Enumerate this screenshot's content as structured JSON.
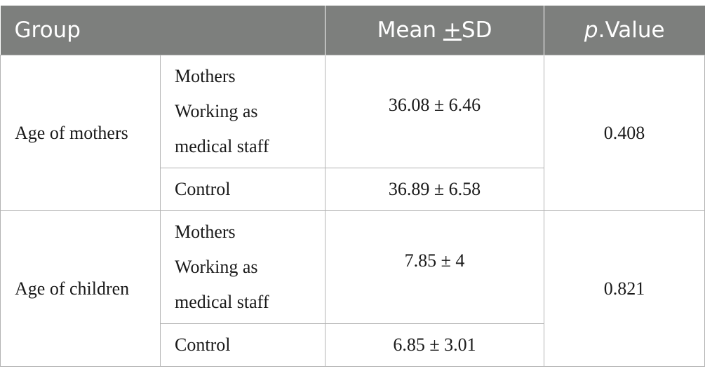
{
  "table": {
    "headers": {
      "group": "Group",
      "mean_prefix": "Mean ",
      "mean_pm": "+",
      "mean_suffix": "SD",
      "p_italic": "p",
      "p_rest": ".Value"
    },
    "rows": [
      {
        "group": "Age of mothers",
        "p_value": "0.408",
        "subrows": [
          {
            "label_lines": [
              "Mothers",
              "Working as",
              "medical staff"
            ],
            "mean_sd": "36.08 ± 6.46"
          },
          {
            "label_lines": [
              "Control"
            ],
            "mean_sd": "36.89 ± 6.58"
          }
        ]
      },
      {
        "group": "Age of children",
        "p_value": "0.821",
        "subrows": [
          {
            "label_lines": [
              "Mothers",
              "Working as",
              "medical staff"
            ],
            "mean_sd": "7.85 ± 4"
          },
          {
            "label_lines": [
              "Control"
            ],
            "mean_sd": "6.85 ± 3.01"
          }
        ]
      }
    ]
  }
}
